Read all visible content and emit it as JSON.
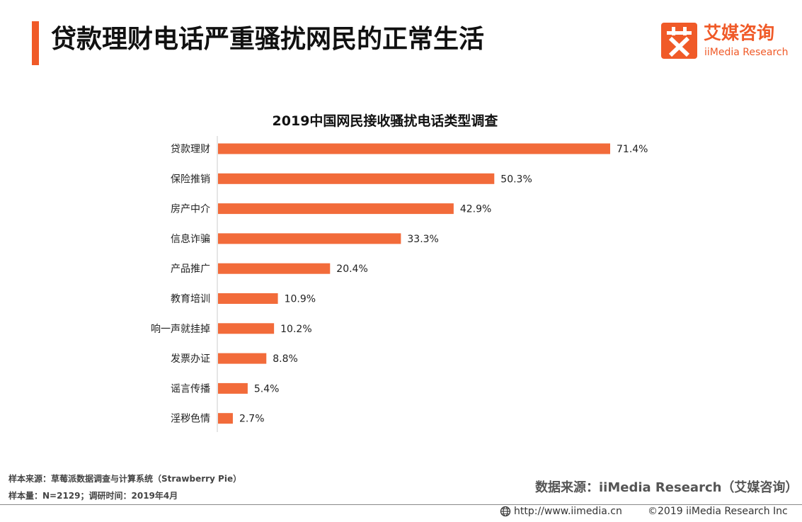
{
  "header": {
    "title": "贷款理财电话严重骚扰网民的正常生活",
    "accent_color": "#f05a28"
  },
  "logo": {
    "cn": "艾媒咨询",
    "en": "iiMedia Research",
    "mark_icon": "ai-character-logo-icon"
  },
  "chart_data": {
    "type": "bar",
    "orientation": "horizontal",
    "title": "2019中国网民接收骚扰电话类型调查",
    "categories": [
      "贷款理财",
      "保险推销",
      "房产中介",
      "信息诈骗",
      "产品推广",
      "教育培训",
      "响一声就挂掉",
      "发票办证",
      "谣言传播",
      "淫秽色情"
    ],
    "values": [
      71.4,
      50.3,
      42.9,
      33.3,
      20.4,
      10.9,
      10.2,
      8.8,
      5.4,
      2.7
    ],
    "value_labels": [
      "71.4%",
      "50.3%",
      "42.9%",
      "33.3%",
      "20.4%",
      "10.9%",
      "10.2%",
      "8.8%",
      "5.4%",
      "2.7%"
    ],
    "unit": "%",
    "xlim": [
      0,
      71.4
    ],
    "bar_color": "#f26b3a",
    "grid": false,
    "legend": "none"
  },
  "footer": {
    "sample_source": "样本来源：草莓派数据调查与计算系统（Strawberry Pie）",
    "sample_size": "样本量：N=2129；调研时间：2019年4月",
    "data_source": "数据来源：iiMedia Research（艾媒咨询）",
    "url": "http://www.iimedia.cn",
    "copyright": "©2019  iiMedia Research  Inc",
    "url_icon": "globe-icon"
  }
}
